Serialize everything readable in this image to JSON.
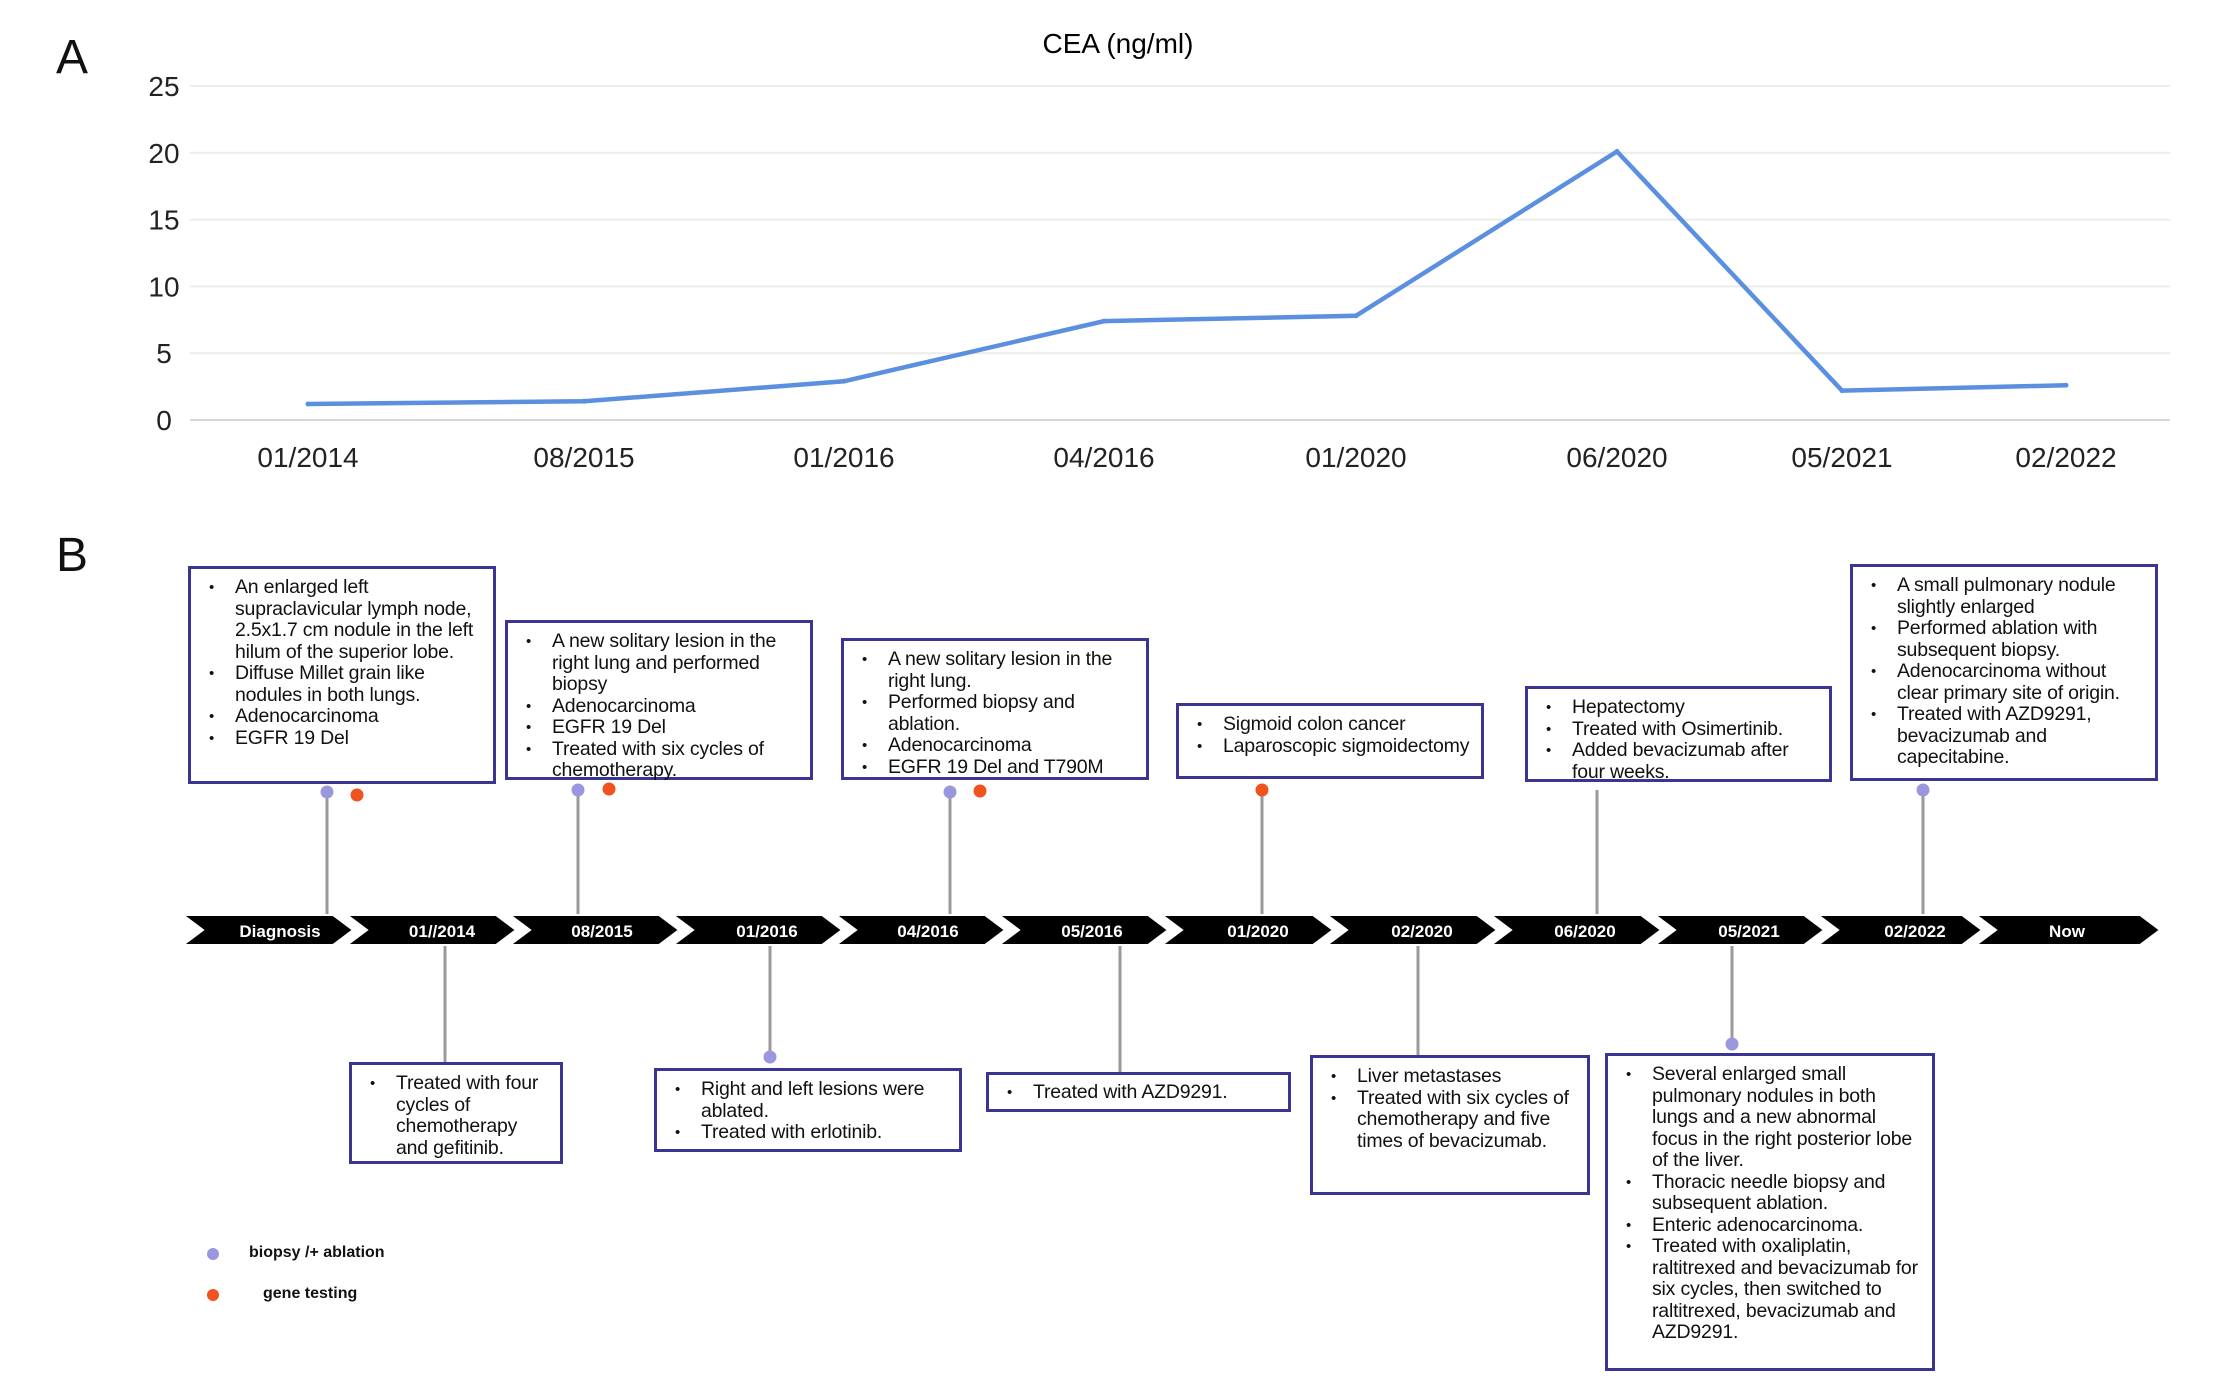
{
  "panels": {
    "a": "A",
    "b": "B"
  },
  "chart_data": {
    "type": "line",
    "title": "CEA (ng/ml)",
    "categories": [
      "01/2014",
      "08/2015",
      "01/2016",
      "04/2016",
      "01/2020",
      "06/2020",
      "05/2021",
      "02/2022"
    ],
    "series": [
      {
        "values": [
          1.2,
          1.4,
          2.9,
          7.4,
          7.8,
          20.1,
          2.2,
          2.6
        ],
        "color": "#5b8fdf"
      }
    ],
    "yticks": [
      0,
      5,
      10,
      15,
      20,
      25
    ],
    "ylim": [
      0,
      25
    ],
    "xlabel": "",
    "ylabel": "",
    "grid": true
  },
  "timeline": {
    "milestones": [
      "Diagnosis",
      "01//2014",
      "08/2015",
      "01/2016",
      "04/2016",
      "05/2016",
      "01/2020",
      "02/2020",
      "06/2020",
      "05/2021",
      "02/2022",
      "Now"
    ],
    "top_boxes": [
      {
        "items": [
          "An enlarged  left supraclavicular lymph node, 2.5x1.7 cm  nodule in the left hilum of the superior lobe.",
          "Diffuse Millet grain like nodules in both lungs.",
          "Adenocarcinoma",
          "EGFR 19 Del"
        ]
      },
      {
        "items": [
          "A new solitary lesion in the right lung and performed biopsy",
          "Adenocarcinoma",
          "EGFR 19 Del",
          "Treated with six cycles of chemotherapy."
        ]
      },
      {
        "items": [
          "A new solitary lesion in the right lung.",
          "Performed biopsy and ablation.",
          "Adenocarcinoma",
          "EGFR 19 Del and T790M"
        ]
      },
      {
        "items": [
          "Sigmoid colon cancer",
          "Laparoscopic sigmoidectomy"
        ]
      },
      {
        "items": [
          "Hepatectomy",
          "Treated with Osimertinib.",
          "Added bevacizumab after four weeks."
        ]
      },
      {
        "items": [
          "A small pulmonary nodule slightly enlarged",
          "Performed ablation with subsequent biopsy.",
          "Adenocarcinoma without clear primary site of origin.",
          "Treated with AZD9291, bevacizumab and capecitabine."
        ]
      }
    ],
    "bottom_boxes": [
      {
        "items": [
          "Treated with four cycles of chemotherapy and  gefitinib."
        ]
      },
      {
        "items": [
          "Right and left lesions were ablated.",
          "Treated with erlotinib."
        ]
      },
      {
        "items": [
          "Treated with AZD9291."
        ]
      },
      {
        "items": [
          "Liver metastases",
          "Treated with six cycles of chemotherapy and five times of bevacizumab."
        ]
      },
      {
        "items": [
          "Several enlarged small pulmonary nodules in both lungs and a new abnormal focus in the right posterior lobe of the liver.",
          "Thoracic needle biopsy and subsequent ablation.",
          "Enteric adenocarcinoma.",
          "Treated with oxaliplatin, raltitrexed and bevacizumab for six cycles, then switched to raltitrexed, bevacizumab and AZD9291."
        ]
      }
    ],
    "legend": [
      {
        "label": "biopsy /+ ablation",
        "color": "#9b97df"
      },
      {
        "label": "gene testing",
        "color": "#f0531f"
      }
    ],
    "colors": {
      "arrow": "#000000",
      "box_border": "#3a3492",
      "milestone_text_dark": "#ffffff",
      "milestone_text": "#0a0aff"
    }
  }
}
